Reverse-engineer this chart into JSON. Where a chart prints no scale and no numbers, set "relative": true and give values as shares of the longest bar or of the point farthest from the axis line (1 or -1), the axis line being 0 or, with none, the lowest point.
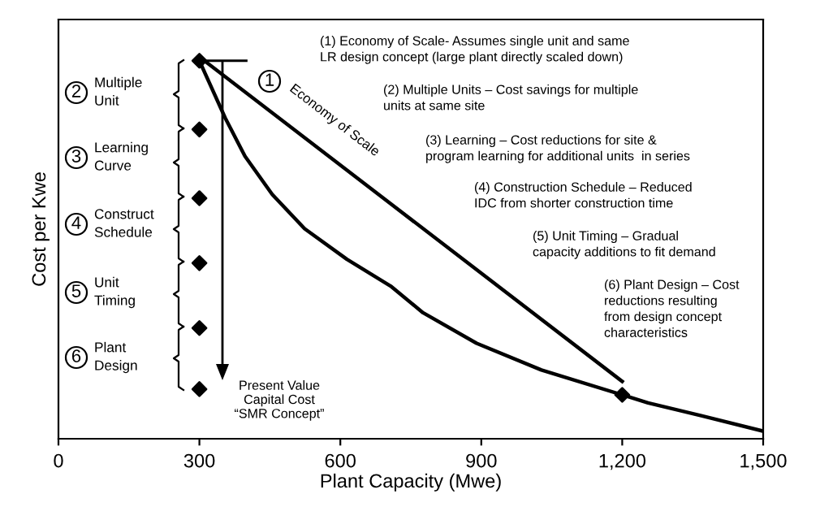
{
  "chart_data": {
    "type": "line",
    "relative": true,
    "xlabel": "Plant Capacity (Mwe)",
    "ylabel": "Cost per Kwe",
    "xlim": [
      0,
      1500
    ],
    "xticks": [
      0,
      300,
      600,
      900,
      {
        "value": 1200,
        "label": "1,200"
      },
      {
        "value": 1500,
        "label": "1,500"
      }
    ],
    "grid": false,
    "legend": false,
    "series": [
      {
        "name": "Economy of Scale",
        "color": "#000000",
        "marker": "none",
        "x": [
          300,
          1200
        ],
        "values": [
          1.0,
          0.15
        ]
      },
      {
        "color": "#000000",
        "marker": "none",
        "x": [
          300,
          355,
          397,
          455,
          524,
          614,
          707,
          776,
          890,
          1028,
          1200,
          1255,
          1370,
          1500
        ],
        "values": [
          0.99,
          0.84,
          0.74,
          0.64,
          0.55,
          0.47,
          0.4,
          0.33,
          0.25,
          0.18,
          0.115,
          0.094,
          0.06,
          0.02
        ]
      },
      {
        "type": "scatter",
        "color": "#000000",
        "marker": "diamond",
        "x": [
          300,
          300,
          300,
          300,
          300,
          300,
          1200
        ],
        "values": [
          0.99,
          0.81,
          0.63,
          0.46,
          0.29,
          0.13,
          0.115
        ]
      }
    ],
    "annotations": [
      "1",
      "2",
      "Multiple\nUnit",
      "3",
      "Learning\nCurve",
      "4",
      "Construct\nSchedule",
      "5",
      "Unit\nTiming",
      "6",
      "Plant\nDesign",
      "(1) Economy of Scale- Assumes single unit and same\nLR design concept (large plant directly scaled down)",
      "(2) Multiple Units – Cost savings for multiple\nunits at same site",
      "(3) Learning – Cost reductions for site &\nprogram learning for additional units  in series",
      "(4) Construction Schedule – Reduced\nIDC from shorter construction time",
      "(5) Unit Timing – Gradual\ncapacity additions to fit demand",
      "(6) Plant Design – Cost\nreductions resulting\nfrom design concept\ncharacteristics",
      "Present Value\nCapital Cost\n“SMR Concept”"
    ]
  }
}
